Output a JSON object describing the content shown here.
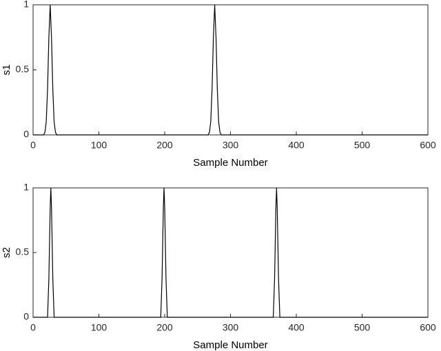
{
  "chart_data": [
    {
      "type": "line",
      "x_label": "Sample Number",
      "y_label": "s1",
      "xlim": [
        0,
        600
      ],
      "xticks": [
        0,
        100,
        200,
        300,
        400,
        500,
        600
      ],
      "ylim": [
        0,
        1
      ],
      "yticks": [
        0,
        0.5,
        1
      ],
      "x": [
        0,
        16,
        18,
        20,
        22,
        24,
        26,
        28,
        30,
        32,
        34,
        36,
        266,
        268,
        270,
        272,
        274,
        276,
        278,
        280,
        282,
        284,
        286,
        600
      ],
      "series": [
        {
          "color": "#000000",
          "values": [
            0,
            0,
            0.02,
            0.1,
            0.35,
            0.75,
            1,
            0.75,
            0.35,
            0.1,
            0.02,
            0,
            0,
            0.02,
            0.1,
            0.35,
            0.75,
            1,
            0.75,
            0.35,
            0.1,
            0.02,
            0,
            0
          ]
        }
      ]
    },
    {
      "type": "line",
      "x_label": "Sample Number",
      "y_label": "s2",
      "xlim": [
        0,
        600
      ],
      "xticks": [
        0,
        100,
        200,
        300,
        400,
        500,
        600
      ],
      "ylim": [
        0,
        1
      ],
      "yticks": [
        0,
        0.5,
        1
      ],
      "x": [
        0,
        22,
        24,
        26,
        27,
        28,
        30,
        32,
        194,
        196,
        198,
        199,
        200,
        202,
        204,
        365,
        367,
        369,
        370,
        371,
        373,
        375,
        600
      ],
      "series": [
        {
          "color": "#000000",
          "values": [
            0,
            0,
            0.3,
            0.85,
            1,
            0.85,
            0.3,
            0,
            0,
            0.3,
            0.85,
            1,
            0.85,
            0.3,
            0,
            0,
            0.3,
            0.85,
            1,
            0.85,
            0.3,
            0,
            0
          ]
        }
      ]
    }
  ]
}
